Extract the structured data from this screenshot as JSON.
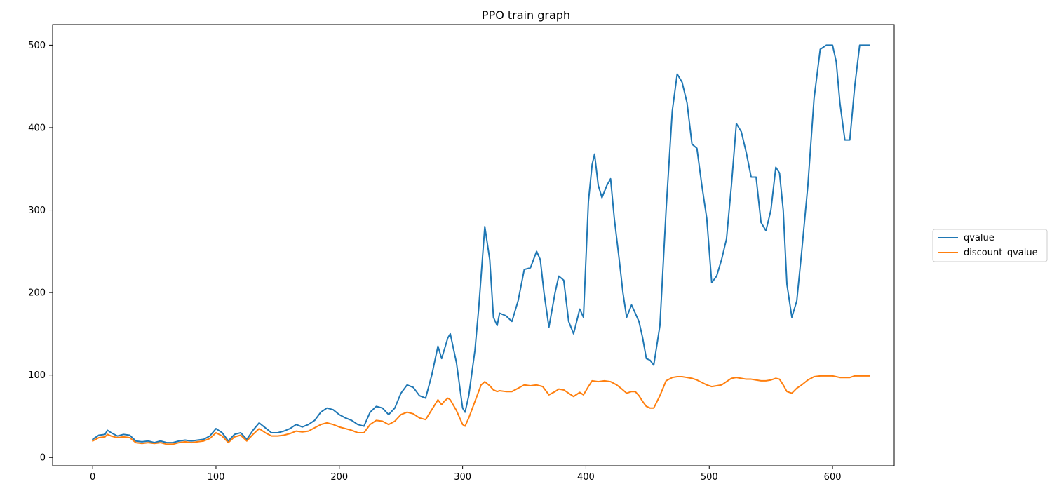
{
  "chart_data": {
    "type": "line",
    "title": "PPO train graph",
    "xlabel": "",
    "ylabel": "",
    "xlim": [
      -32.5,
      650
    ],
    "ylim": [
      -10,
      525
    ],
    "xticks": [
      0,
      100,
      200,
      300,
      400,
      500,
      600
    ],
    "yticks": [
      0,
      100,
      200,
      300,
      400,
      500
    ],
    "grid": false,
    "legend_position": "outside-right",
    "series": [
      {
        "name": "qvalue",
        "color": "#1f77b4",
        "points": [
          [
            0,
            22
          ],
          [
            5,
            27
          ],
          [
            10,
            28
          ],
          [
            12,
            33
          ],
          [
            15,
            30
          ],
          [
            20,
            26
          ],
          [
            25,
            28
          ],
          [
            30,
            27
          ],
          [
            35,
            20
          ],
          [
            40,
            19
          ],
          [
            45,
            20
          ],
          [
            50,
            18
          ],
          [
            55,
            20
          ],
          [
            60,
            18
          ],
          [
            65,
            18
          ],
          [
            70,
            20
          ],
          [
            75,
            21
          ],
          [
            80,
            20
          ],
          [
            85,
            21
          ],
          [
            90,
            22
          ],
          [
            95,
            26
          ],
          [
            100,
            35
          ],
          [
            105,
            30
          ],
          [
            110,
            20
          ],
          [
            115,
            28
          ],
          [
            120,
            30
          ],
          [
            125,
            22
          ],
          [
            130,
            33
          ],
          [
            135,
            42
          ],
          [
            140,
            36
          ],
          [
            145,
            30
          ],
          [
            150,
            30
          ],
          [
            155,
            32
          ],
          [
            160,
            35
          ],
          [
            165,
            40
          ],
          [
            170,
            37
          ],
          [
            175,
            40
          ],
          [
            180,
            45
          ],
          [
            185,
            55
          ],
          [
            190,
            60
          ],
          [
            195,
            58
          ],
          [
            200,
            52
          ],
          [
            205,
            48
          ],
          [
            210,
            45
          ],
          [
            215,
            40
          ],
          [
            220,
            38
          ],
          [
            225,
            55
          ],
          [
            230,
            62
          ],
          [
            235,
            60
          ],
          [
            240,
            52
          ],
          [
            245,
            60
          ],
          [
            250,
            78
          ],
          [
            255,
            88
          ],
          [
            260,
            85
          ],
          [
            265,
            75
          ],
          [
            270,
            72
          ],
          [
            275,
            100
          ],
          [
            280,
            135
          ],
          [
            283,
            120
          ],
          [
            285,
            130
          ],
          [
            288,
            145
          ],
          [
            290,
            150
          ],
          [
            295,
            115
          ],
          [
            300,
            60
          ],
          [
            302,
            55
          ],
          [
            305,
            75
          ],
          [
            310,
            130
          ],
          [
            313,
            180
          ],
          [
            318,
            280
          ],
          [
            322,
            240
          ],
          [
            325,
            170
          ],
          [
            328,
            160
          ],
          [
            330,
            175
          ],
          [
            335,
            172
          ],
          [
            340,
            165
          ],
          [
            345,
            190
          ],
          [
            350,
            228
          ],
          [
            355,
            230
          ],
          [
            360,
            250
          ],
          [
            363,
            240
          ],
          [
            366,
            200
          ],
          [
            370,
            158
          ],
          [
            375,
            200
          ],
          [
            378,
            220
          ],
          [
            382,
            215
          ],
          [
            386,
            165
          ],
          [
            390,
            150
          ],
          [
            395,
            180
          ],
          [
            398,
            170
          ],
          [
            402,
            310
          ],
          [
            405,
            355
          ],
          [
            407,
            368
          ],
          [
            410,
            330
          ],
          [
            413,
            315
          ],
          [
            417,
            330
          ],
          [
            420,
            338
          ],
          [
            423,
            290
          ],
          [
            427,
            240
          ],
          [
            430,
            200
          ],
          [
            433,
            170
          ],
          [
            437,
            185
          ],
          [
            440,
            175
          ],
          [
            443,
            165
          ],
          [
            446,
            145
          ],
          [
            449,
            120
          ],
          [
            452,
            118
          ],
          [
            455,
            112
          ],
          [
            460,
            160
          ],
          [
            465,
            300
          ],
          [
            470,
            420
          ],
          [
            474,
            465
          ],
          [
            478,
            455
          ],
          [
            482,
            430
          ],
          [
            486,
            380
          ],
          [
            490,
            375
          ],
          [
            494,
            330
          ],
          [
            498,
            290
          ],
          [
            502,
            212
          ],
          [
            506,
            220
          ],
          [
            510,
            240
          ],
          [
            514,
            265
          ],
          [
            518,
            330
          ],
          [
            522,
            405
          ],
          [
            526,
            395
          ],
          [
            530,
            370
          ],
          [
            534,
            340
          ],
          [
            538,
            340
          ],
          [
            542,
            285
          ],
          [
            546,
            275
          ],
          [
            550,
            300
          ],
          [
            554,
            352
          ],
          [
            557,
            345
          ],
          [
            560,
            300
          ],
          [
            563,
            210
          ],
          [
            567,
            170
          ],
          [
            571,
            190
          ],
          [
            575,
            250
          ],
          [
            580,
            330
          ],
          [
            585,
            435
          ],
          [
            590,
            495
          ],
          [
            595,
            500
          ],
          [
            600,
            500
          ],
          [
            603,
            480
          ],
          [
            606,
            430
          ],
          [
            610,
            385
          ],
          [
            614,
            385
          ],
          [
            618,
            450
          ],
          [
            622,
            500
          ],
          [
            626,
            500
          ],
          [
            630,
            500
          ]
        ]
      },
      {
        "name": "discount_qvalue",
        "color": "#ff7f0e",
        "points": [
          [
            0,
            20
          ],
          [
            5,
            24
          ],
          [
            10,
            25
          ],
          [
            12,
            28
          ],
          [
            15,
            26
          ],
          [
            20,
            24
          ],
          [
            25,
            25
          ],
          [
            30,
            24
          ],
          [
            35,
            18
          ],
          [
            40,
            17
          ],
          [
            45,
            18
          ],
          [
            50,
            17
          ],
          [
            55,
            18
          ],
          [
            60,
            16
          ],
          [
            65,
            16
          ],
          [
            70,
            18
          ],
          [
            75,
            19
          ],
          [
            80,
            18
          ],
          [
            85,
            19
          ],
          [
            90,
            20
          ],
          [
            95,
            23
          ],
          [
            100,
            30
          ],
          [
            105,
            26
          ],
          [
            110,
            18
          ],
          [
            115,
            25
          ],
          [
            120,
            27
          ],
          [
            125,
            20
          ],
          [
            130,
            28
          ],
          [
            135,
            35
          ],
          [
            140,
            30
          ],
          [
            145,
            26
          ],
          [
            150,
            26
          ],
          [
            155,
            27
          ],
          [
            160,
            29
          ],
          [
            165,
            32
          ],
          [
            170,
            31
          ],
          [
            175,
            32
          ],
          [
            180,
            36
          ],
          [
            185,
            40
          ],
          [
            190,
            42
          ],
          [
            195,
            40
          ],
          [
            200,
            37
          ],
          [
            205,
            35
          ],
          [
            210,
            33
          ],
          [
            215,
            30
          ],
          [
            220,
            30
          ],
          [
            225,
            40
          ],
          [
            230,
            45
          ],
          [
            235,
            44
          ],
          [
            240,
            40
          ],
          [
            245,
            44
          ],
          [
            250,
            52
          ],
          [
            255,
            55
          ],
          [
            260,
            53
          ],
          [
            265,
            48
          ],
          [
            270,
            46
          ],
          [
            275,
            58
          ],
          [
            280,
            70
          ],
          [
            283,
            64
          ],
          [
            285,
            68
          ],
          [
            288,
            72
          ],
          [
            290,
            70
          ],
          [
            295,
            57
          ],
          [
            300,
            40
          ],
          [
            302,
            38
          ],
          [
            305,
            48
          ],
          [
            310,
            68
          ],
          [
            315,
            88
          ],
          [
            318,
            92
          ],
          [
            322,
            87
          ],
          [
            325,
            82
          ],
          [
            328,
            80
          ],
          [
            330,
            81
          ],
          [
            335,
            80
          ],
          [
            340,
            80
          ],
          [
            345,
            84
          ],
          [
            350,
            88
          ],
          [
            355,
            87
          ],
          [
            360,
            88
          ],
          [
            365,
            86
          ],
          [
            370,
            76
          ],
          [
            375,
            80
          ],
          [
            378,
            83
          ],
          [
            382,
            82
          ],
          [
            386,
            78
          ],
          [
            390,
            74
          ],
          [
            395,
            79
          ],
          [
            398,
            76
          ],
          [
            402,
            86
          ],
          [
            405,
            93
          ],
          [
            410,
            92
          ],
          [
            415,
            93
          ],
          [
            420,
            92
          ],
          [
            425,
            88
          ],
          [
            430,
            82
          ],
          [
            433,
            78
          ],
          [
            437,
            80
          ],
          [
            440,
            80
          ],
          [
            443,
            75
          ],
          [
            446,
            68
          ],
          [
            449,
            62
          ],
          [
            452,
            60
          ],
          [
            455,
            60
          ],
          [
            460,
            75
          ],
          [
            465,
            93
          ],
          [
            470,
            97
          ],
          [
            474,
            98
          ],
          [
            478,
            98
          ],
          [
            482,
            97
          ],
          [
            486,
            96
          ],
          [
            490,
            94
          ],
          [
            494,
            91
          ],
          [
            498,
            88
          ],
          [
            502,
            86
          ],
          [
            506,
            87
          ],
          [
            510,
            88
          ],
          [
            514,
            92
          ],
          [
            518,
            96
          ],
          [
            522,
            97
          ],
          [
            526,
            96
          ],
          [
            530,
            95
          ],
          [
            534,
            95
          ],
          [
            538,
            94
          ],
          [
            542,
            93
          ],
          [
            546,
            93
          ],
          [
            550,
            94
          ],
          [
            554,
            96
          ],
          [
            557,
            95
          ],
          [
            560,
            88
          ],
          [
            563,
            80
          ],
          [
            567,
            78
          ],
          [
            571,
            84
          ],
          [
            575,
            88
          ],
          [
            580,
            94
          ],
          [
            585,
            98
          ],
          [
            590,
            99
          ],
          [
            595,
            99
          ],
          [
            600,
            99
          ],
          [
            603,
            98
          ],
          [
            606,
            97
          ],
          [
            610,
            97
          ],
          [
            614,
            97
          ],
          [
            618,
            99
          ],
          [
            622,
            99
          ],
          [
            626,
            99
          ],
          [
            630,
            99
          ]
        ]
      }
    ]
  }
}
